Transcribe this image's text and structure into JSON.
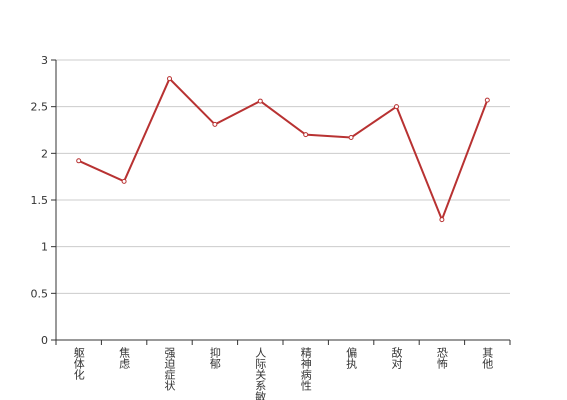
{
  "chart_data": {
    "type": "line",
    "categories": [
      "躯体化",
      "焦虑",
      "强迫症状",
      "抑郁",
      "人际关系敏感",
      "精神病性",
      "偏执",
      "敌对",
      "恐怖",
      "其他"
    ],
    "series": [
      {
        "color": "#b83232",
        "values": [
          1.92,
          1.7,
          2.8,
          2.31,
          2.56,
          2.2,
          2.17,
          2.5,
          1.29,
          2.57
        ]
      }
    ],
    "ylim": [
      0,
      3
    ],
    "yticks": [
      0,
      0.5,
      1,
      1.5,
      2,
      2.5,
      3
    ],
    "grid": true
  }
}
